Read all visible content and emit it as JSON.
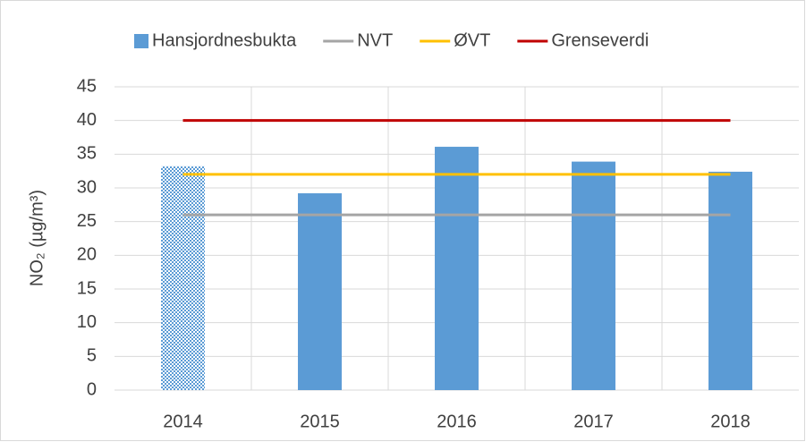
{
  "chart_data": {
    "type": "bar",
    "y_label": "NO₂ (µg/m³)",
    "categories": [
      "2014",
      "2015",
      "2016",
      "2017",
      "2018"
    ],
    "series": [
      {
        "name": "Hansjordnesbukta",
        "type": "bar",
        "color": "#5b9bd5",
        "values": [
          33.2,
          29.2,
          36.1,
          33.9,
          32.4
        ],
        "hatch": [
          true,
          false,
          false,
          false,
          false
        ]
      },
      {
        "name": "NVT",
        "type": "line",
        "color": "#a5a5a5",
        "values": [
          26,
          26,
          26,
          26,
          26
        ]
      },
      {
        "name": "ØVT",
        "type": "line",
        "color": "#ffc000",
        "values": [
          32,
          32,
          32,
          32,
          32
        ]
      },
      {
        "name": "Grenseverdi",
        "type": "line",
        "color": "#c00000",
        "values": [
          40,
          40,
          40,
          40,
          40
        ]
      }
    ],
    "ylim": [
      0,
      45
    ],
    "yticks": [
      0,
      5,
      10,
      15,
      20,
      25,
      30,
      35,
      40,
      45
    ],
    "grid": true,
    "legend": "top"
  }
}
